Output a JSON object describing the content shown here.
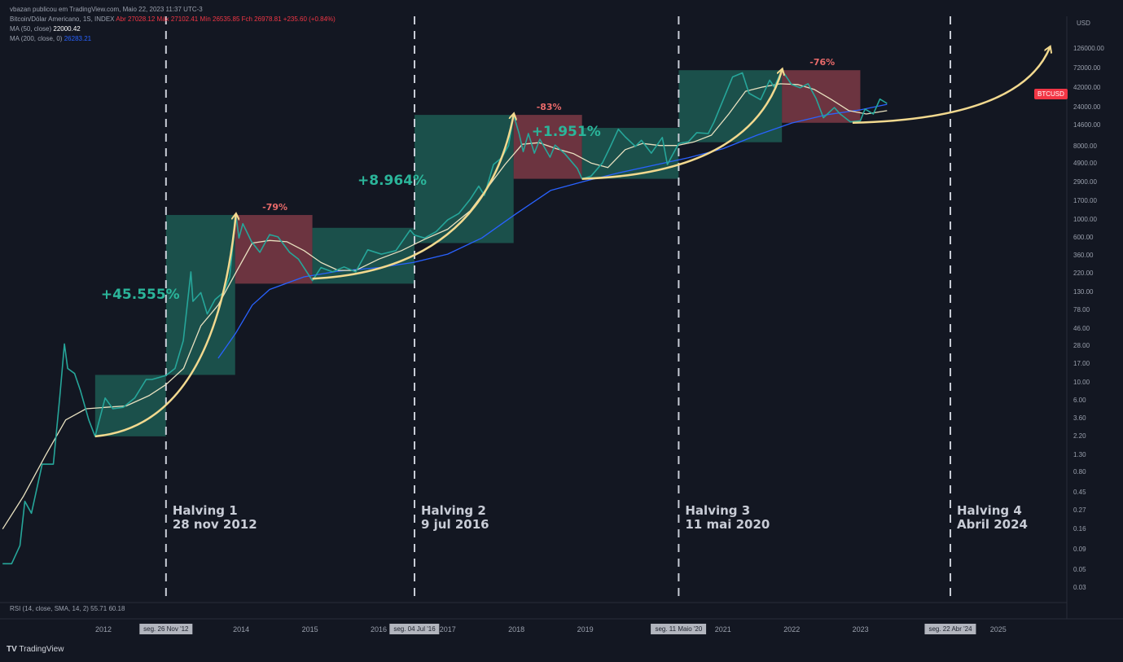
{
  "header": {
    "publisher": "vbazan publicou em TradingView.com, Maio 22, 2023 11:37 UTC-3",
    "symbol": "Bitcoin/Dólar Americano, 1S, INDEX",
    "ohlc": "Abr 27028.12 Máx 27102.41 Mín 26535.85 Fch 26978.81 +235.60 (+0.84%)",
    "ma50_label": "MA (50, close)",
    "ma50_value": "22000.42",
    "ma200_label": "MA (200, close, 0)",
    "ma200_value": "26283.21"
  },
  "chart_data": {
    "type": "line",
    "title": "",
    "xlabel": "",
    "ylabel": "USD",
    "yscale": "log",
    "ylim": [
      0.02,
      200000
    ],
    "xlim": [
      "2010-07-01",
      "2025-12-31"
    ],
    "y_ticks": [
      "126000.00",
      "72000.00",
      "42000.00",
      "24000.00",
      "14600.00",
      "8000.00",
      "4900.00",
      "2900.00",
      "1700.00",
      "1000.00",
      "600.00",
      "360.00",
      "220.00",
      "130.00",
      "78.00",
      "46.00",
      "28.00",
      "17.00",
      "10.00",
      "6.00",
      "3.60",
      "2.20",
      "1.30",
      "0.80",
      "0.45",
      "0.27",
      "0.16",
      "0.09",
      "0.05",
      "0.03"
    ],
    "x_ticks": [
      "2012",
      "2014",
      "2015",
      "2016",
      "2017",
      "2018",
      "2019",
      "2021",
      "2022",
      "2023",
      "2025"
    ],
    "x_badges": [
      "seg. 26 Nov '12",
      "seg. 04 Jul '16",
      "seg. 11 Maio '20",
      "seg. 22 Abr '24"
    ],
    "series": [
      {
        "name": "BTCUSD",
        "color": "#26a69a",
        "points": [
          [
            "2010-07-15",
            0.06
          ],
          [
            "2010-09-01",
            0.06
          ],
          [
            "2010-10-15",
            0.1
          ],
          [
            "2010-11-10",
            0.35
          ],
          [
            "2010-12-15",
            0.25
          ],
          [
            "2011-02-10",
            1.0
          ],
          [
            "2011-04-10",
            1.0
          ],
          [
            "2011-05-15",
            7.0
          ],
          [
            "2011-06-08",
            30.0
          ],
          [
            "2011-06-25",
            15.0
          ],
          [
            "2011-08-01",
            13.0
          ],
          [
            "2011-09-01",
            8.0
          ],
          [
            "2011-10-15",
            3.5
          ],
          [
            "2011-11-18",
            2.2
          ],
          [
            "2012-01-10",
            6.5
          ],
          [
            "2012-02-20",
            4.8
          ],
          [
            "2012-04-15",
            5.0
          ],
          [
            "2012-06-15",
            6.5
          ],
          [
            "2012-08-15",
            11.0
          ],
          [
            "2012-09-15",
            11.0
          ],
          [
            "2012-10-15",
            11.5
          ],
          [
            "2012-11-28",
            12.3
          ],
          [
            "2013-01-15",
            15.0
          ],
          [
            "2013-02-28",
            33.0
          ],
          [
            "2013-04-09",
            230.0
          ],
          [
            "2013-04-20",
            100.0
          ],
          [
            "2013-06-01",
            128.0
          ],
          [
            "2013-07-05",
            70.0
          ],
          [
            "2013-08-15",
            105.0
          ],
          [
            "2013-10-01",
            130.0
          ],
          [
            "2013-11-01",
            200.0
          ],
          [
            "2013-12-04",
            1150.0
          ],
          [
            "2013-12-20",
            600.0
          ],
          [
            "2014-01-10",
            900.0
          ],
          [
            "2014-02-25",
            540.0
          ],
          [
            "2014-04-10",
            400.0
          ],
          [
            "2014-06-01",
            660.0
          ],
          [
            "2014-07-15",
            620.0
          ],
          [
            "2014-09-15",
            400.0
          ],
          [
            "2014-11-01",
            330.0
          ],
          [
            "2015-01-14",
            180.0
          ],
          [
            "2015-03-01",
            260.0
          ],
          [
            "2015-05-01",
            230.0
          ],
          [
            "2015-07-01",
            265.0
          ],
          [
            "2015-09-01",
            230.0
          ],
          [
            "2015-11-04",
            430.0
          ],
          [
            "2016-01-15",
            380.0
          ],
          [
            "2016-04-01",
            420.0
          ],
          [
            "2016-06-16",
            750.0
          ],
          [
            "2016-07-09",
            650.0
          ],
          [
            "2016-09-01",
            600.0
          ],
          [
            "2016-11-01",
            720.0
          ],
          [
            "2017-01-01",
            1000.0
          ],
          [
            "2017-03-01",
            1200.0
          ],
          [
            "2017-05-01",
            1800.0
          ],
          [
            "2017-06-15",
            2600.0
          ],
          [
            "2017-07-15",
            2000.0
          ],
          [
            "2017-09-01",
            4800.0
          ],
          [
            "2017-10-15",
            5800.0
          ],
          [
            "2017-11-20",
            8200.0
          ],
          [
            "2017-12-17",
            19500.0
          ],
          [
            "2018-01-15",
            11500.0
          ],
          [
            "2018-02-06",
            6900.0
          ],
          [
            "2018-03-05",
            11500.0
          ],
          [
            "2018-04-06",
            6600.0
          ],
          [
            "2018-05-05",
            9800.0
          ],
          [
            "2018-06-28",
            5900.0
          ],
          [
            "2018-07-25",
            8300.0
          ],
          [
            "2018-09-15",
            6500.0
          ],
          [
            "2018-11-20",
            4300.0
          ],
          [
            "2018-12-15",
            3200.0
          ],
          [
            "2019-02-01",
            3450.0
          ],
          [
            "2019-04-02",
            5000.0
          ],
          [
            "2019-05-15",
            8000.0
          ],
          [
            "2019-06-26",
            13000.0
          ],
          [
            "2019-08-01",
            10500.0
          ],
          [
            "2019-09-24",
            8000.0
          ],
          [
            "2019-10-26",
            9500.0
          ],
          [
            "2019-12-18",
            6600.0
          ],
          [
            "2020-02-14",
            10300.0
          ],
          [
            "2020-03-12",
            4800.0
          ],
          [
            "2020-05-11",
            8700.0
          ],
          [
            "2020-07-01",
            9100.0
          ],
          [
            "2020-08-15",
            11800.0
          ],
          [
            "2020-10-15",
            11500.0
          ],
          [
            "2020-11-15",
            16000.0
          ],
          [
            "2020-12-31",
            29000.0
          ],
          [
            "2021-02-21",
            57000.0
          ],
          [
            "2021-04-14",
            64000.0
          ],
          [
            "2021-05-19",
            36000.0
          ],
          [
            "2021-07-20",
            30000.0
          ],
          [
            "2021-09-06",
            52000.0
          ],
          [
            "2021-09-30",
            43000.0
          ],
          [
            "2021-11-10",
            69000.0
          ],
          [
            "2021-12-31",
            46000.0
          ],
          [
            "2022-02-15",
            42000.0
          ],
          [
            "2022-03-29",
            47000.0
          ],
          [
            "2022-05-10",
            31000.0
          ],
          [
            "2022-06-18",
            18000.0
          ],
          [
            "2022-08-15",
            24000.0
          ],
          [
            "2022-09-15",
            20000.0
          ],
          [
            "2022-11-09",
            16000.0
          ],
          [
            "2022-12-31",
            16500.0
          ],
          [
            "2023-01-25",
            23000.0
          ],
          [
            "2023-03-10",
            20000.0
          ],
          [
            "2023-04-14",
            30500.0
          ],
          [
            "2023-05-22",
            26978.0
          ]
        ]
      },
      {
        "name": "MA (50, close)",
        "color": "#e8e1c0",
        "points": [
          [
            "2010-07-15",
            0.16
          ],
          [
            "2010-11-01",
            0.4
          ],
          [
            "2011-03-01",
            1.3
          ],
          [
            "2011-06-15",
            3.5
          ],
          [
            "2011-10-01",
            4.8
          ],
          [
            "2012-01-15",
            5.0
          ],
          [
            "2012-05-01",
            5.2
          ],
          [
            "2012-09-01",
            7.0
          ],
          [
            "2012-11-28",
            9.5
          ],
          [
            "2013-03-01",
            15.0
          ],
          [
            "2013-06-01",
            50.0
          ],
          [
            "2013-09-01",
            90.0
          ],
          [
            "2013-12-01",
            220.0
          ],
          [
            "2014-03-01",
            520.0
          ],
          [
            "2014-06-01",
            560.0
          ],
          [
            "2014-09-01",
            540.0
          ],
          [
            "2014-12-01",
            420.0
          ],
          [
            "2015-03-01",
            300.0
          ],
          [
            "2015-06-01",
            240.0
          ],
          [
            "2015-09-01",
            240.0
          ],
          [
            "2016-01-01",
            330.0
          ],
          [
            "2016-05-01",
            420.0
          ],
          [
            "2016-09-01",
            580.0
          ],
          [
            "2017-01-01",
            770.0
          ],
          [
            "2017-05-01",
            1300.0
          ],
          [
            "2017-08-01",
            2500.0
          ],
          [
            "2017-11-01",
            4800.0
          ],
          [
            "2018-02-01",
            8500.0
          ],
          [
            "2018-05-01",
            8900.0
          ],
          [
            "2018-08-01",
            7500.0
          ],
          [
            "2018-11-01",
            6500.0
          ],
          [
            "2019-02-01",
            5000.0
          ],
          [
            "2019-05-01",
            4400.0
          ],
          [
            "2019-08-01",
            7300.0
          ],
          [
            "2019-11-01",
            8700.0
          ],
          [
            "2020-02-01",
            8200.0
          ],
          [
            "2020-05-01",
            8200.0
          ],
          [
            "2020-08-01",
            9100.0
          ],
          [
            "2020-11-01",
            11000.0
          ],
          [
            "2021-02-01",
            20000.0
          ],
          [
            "2021-05-01",
            38000.0
          ],
          [
            "2021-08-01",
            43000.0
          ],
          [
            "2021-11-01",
            47000.0
          ],
          [
            "2022-02-01",
            46000.0
          ],
          [
            "2022-05-01",
            40000.0
          ],
          [
            "2022-08-01",
            30000.0
          ],
          [
            "2022-11-01",
            22000.0
          ],
          [
            "2023-02-01",
            20000.0
          ],
          [
            "2023-05-22",
            22000.42
          ]
        ]
      },
      {
        "name": "MA (200, close, 0)",
        "color": "#2962ff",
        "points": [
          [
            "2013-09-01",
            20.0
          ],
          [
            "2013-12-01",
            40.0
          ],
          [
            "2014-03-01",
            90.0
          ],
          [
            "2014-06-01",
            140.0
          ],
          [
            "2014-12-01",
            200.0
          ],
          [
            "2015-06-01",
            235.0
          ],
          [
            "2016-01-01",
            260.0
          ],
          [
            "2016-07-01",
            300.0
          ],
          [
            "2017-01-01",
            380.0
          ],
          [
            "2017-07-01",
            600.0
          ],
          [
            "2018-01-01",
            1200.0
          ],
          [
            "2018-07-01",
            2300.0
          ],
          [
            "2019-01-01",
            3000.0
          ],
          [
            "2019-07-01",
            3800.0
          ],
          [
            "2020-01-01",
            4700.0
          ],
          [
            "2020-07-01",
            5800.0
          ],
          [
            "2021-01-01",
            7500.0
          ],
          [
            "2021-07-01",
            11000.0
          ],
          [
            "2022-01-01",
            15500.0
          ],
          [
            "2022-07-01",
            19500.0
          ],
          [
            "2023-01-01",
            22500.0
          ],
          [
            "2023-05-22",
            26283.21
          ]
        ]
      }
    ],
    "halvings": [
      {
        "date": "2012-11-28",
        "line1": "Halving 1",
        "line2": "28 nov 2012"
      },
      {
        "date": "2016-07-09",
        "line1": "Halving 2",
        "line2": "9 jul 2016"
      },
      {
        "date": "2020-05-11",
        "line1": "Halving 3",
        "line2": "11 mai 2020"
      },
      {
        "date": "2024-04-22",
        "line1": "Halving 4",
        "line2": "Abril 2024"
      }
    ],
    "annotations": [
      {
        "text": "+45.555%",
        "kind": "gain"
      },
      {
        "text": "-79%",
        "kind": "loss"
      },
      {
        "text": "+8.964%",
        "kind": "gain"
      },
      {
        "text": "-83%",
        "kind": "loss"
      },
      {
        "text": "+1.951%",
        "kind": "gain"
      },
      {
        "text": "-76%",
        "kind": "loss"
      }
    ],
    "boxes": [
      {
        "kind": "up",
        "x0": "2011-11-18",
        "x1": "2012-11-28",
        "y0": 2.2,
        "y1": 12.5
      },
      {
        "kind": "up",
        "x0": "2012-11-28",
        "x1": "2013-11-30",
        "y0": 12.5,
        "y1": 1150.0
      },
      {
        "kind": "down",
        "x0": "2013-11-30",
        "x1": "2015-01-14",
        "y0": 165.0,
        "y1": 1150.0
      },
      {
        "kind": "up",
        "x0": "2015-01-14",
        "x1": "2016-07-09",
        "y0": 165.0,
        "y1": 800.0
      },
      {
        "kind": "up",
        "x0": "2016-07-09",
        "x1": "2017-12-17",
        "y0": 520.0,
        "y1": 19500.0
      },
      {
        "kind": "down",
        "x0": "2017-12-17",
        "x1": "2018-12-15",
        "y0": 3200.0,
        "y1": 19500.0
      },
      {
        "kind": "up",
        "x0": "2018-12-15",
        "x1": "2020-05-11",
        "y0": 3200.0,
        "y1": 13500.0
      },
      {
        "kind": "up",
        "x0": "2020-05-11",
        "x1": "2021-11-10",
        "y0": 9000.0,
        "y1": 69000.0
      },
      {
        "kind": "down",
        "x0": "2021-11-10",
        "x1": "2022-12-31",
        "y0": 15600.0,
        "y1": 69000.0
      }
    ],
    "growth_arrows": [
      {
        "from_date": "2011-11-18",
        "from_val": 2.2,
        "to_date": "2013-12-04",
        "to_val": 1150.0,
        "projected": false
      },
      {
        "from_date": "2015-01-14",
        "from_val": 190.0,
        "to_date": "2017-12-17",
        "to_val": 19500.0,
        "projected": false
      },
      {
        "from_date": "2018-12-15",
        "from_val": 3200.0,
        "to_date": "2021-11-10",
        "to_val": 69000.0,
        "projected": false
      },
      {
        "from_date": "2022-11-20",
        "from_val": 15600.0,
        "to_date": "2025-10-01",
        "to_val": 130000.0,
        "projected": true
      }
    ],
    "last_price_tag": "BTCUSD",
    "colors": {
      "background": "#131722",
      "up_box": "#1d5a52",
      "down_box": "#7d3a45",
      "arrow": "#f2d98f",
      "gain_text": "#2bb59a",
      "loss_text": "#e96a6a",
      "halving_line": "#c8ccd6"
    }
  },
  "indicator": {
    "rsi_label": "RSI (14, close, SMA, 14, 2)",
    "rsi_value": "55.71",
    "rsi_sma": "60.18"
  },
  "footer": {
    "brand_logo": "TV",
    "brand_name": "TradingView"
  }
}
